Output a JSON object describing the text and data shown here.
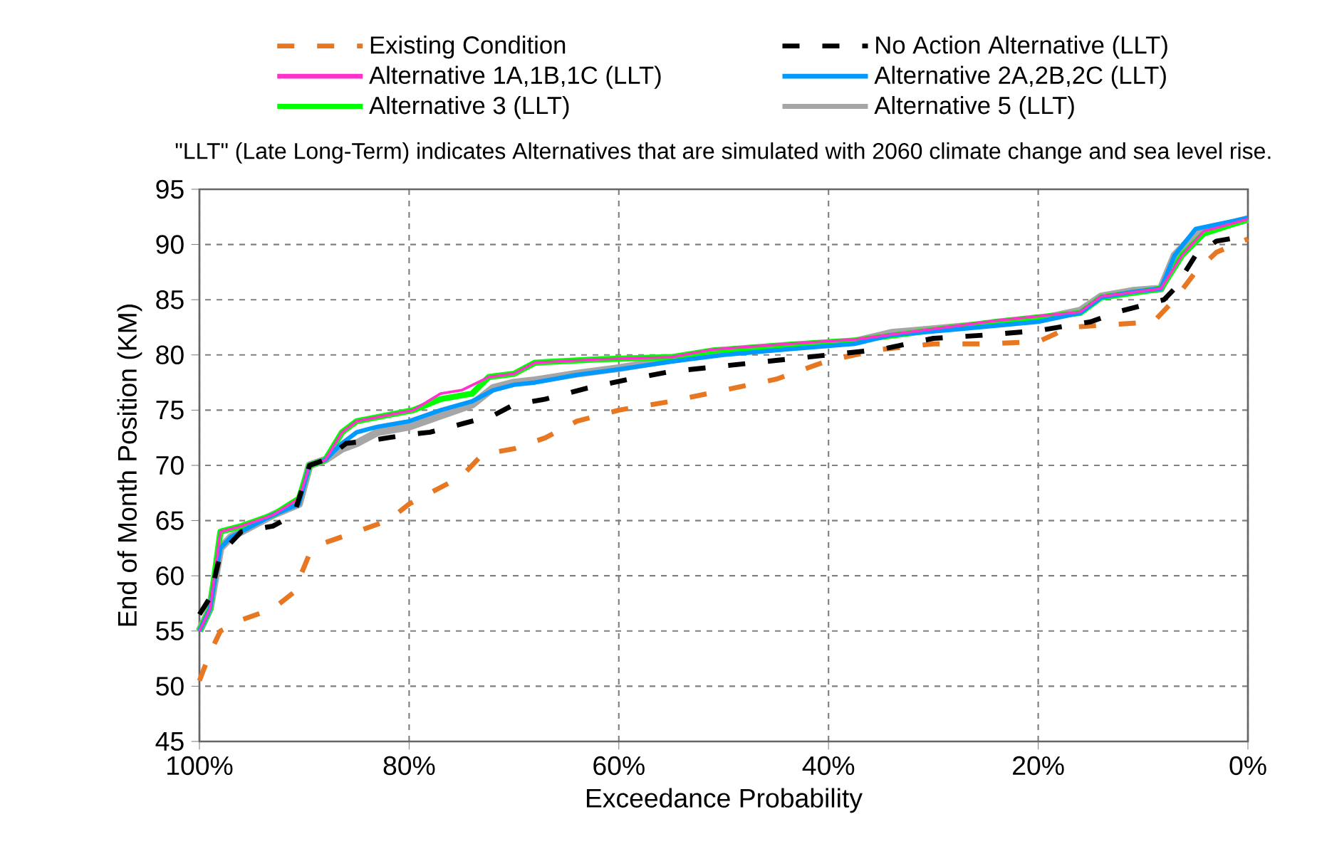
{
  "chart_data": {
    "type": "line",
    "xlabel": "Exceedance Probability",
    "ylabel": "End of Month Position (KM)",
    "annotations": [
      "\"LLT\" (Late Long-Term) indicates Alternatives that are simulated with 2060 climate change and sea level rise."
    ],
    "xlim": [
      100,
      0
    ],
    "ylim": [
      45,
      95
    ],
    "xticks": [
      {
        "value": 100,
        "label": "100%"
      },
      {
        "value": 80,
        "label": "80%"
      },
      {
        "value": 60,
        "label": "60%"
      },
      {
        "value": 40,
        "label": "40%"
      },
      {
        "value": 20,
        "label": "20%"
      },
      {
        "value": 0,
        "label": "0%"
      }
    ],
    "yticks": [
      45,
      50,
      55,
      60,
      65,
      70,
      75,
      80,
      85,
      90,
      95
    ],
    "grid": true,
    "legend": "top",
    "series": [
      {
        "name": "Existing Condition",
        "color": "#e87722",
        "line_style": "dashed",
        "x": [
          100,
          99,
          98,
          96,
          93,
          91,
          89.5,
          88,
          85,
          82,
          80,
          77,
          75,
          73,
          70,
          67,
          64,
          60,
          55,
          50,
          45,
          40,
          35,
          30,
          25,
          20,
          17,
          12,
          9,
          7,
          5,
          3,
          0
        ],
        "values": [
          50.5,
          53,
          55,
          56,
          57,
          58.5,
          62,
          63,
          64,
          65,
          66.5,
          68,
          69,
          71,
          71.5,
          72.5,
          74,
          75,
          75.8,
          76.8,
          77.8,
          79.5,
          80.5,
          81,
          81,
          81.2,
          82.5,
          82.8,
          83,
          85,
          87.5,
          89.3,
          90.5
        ]
      },
      {
        "name": "No Action Alternative (LLT)",
        "color": "#000000",
        "line_style": "dashed",
        "x": [
          100,
          99,
          98,
          97,
          96,
          93,
          91,
          89.5,
          88,
          86,
          84,
          82,
          80,
          78,
          76,
          74,
          72,
          70,
          67,
          63,
          59,
          55,
          50,
          45,
          40,
          35,
          30,
          25,
          20,
          15,
          12,
          10,
          8,
          7,
          5,
          3,
          0
        ],
        "values": [
          56.5,
          58,
          62,
          63,
          64,
          64.5,
          65.5,
          70,
          70.5,
          72,
          72.2,
          72.5,
          72.8,
          73,
          73.5,
          74,
          74.5,
          75.5,
          76,
          77,
          77.8,
          78.5,
          79,
          79.5,
          80,
          80.5,
          81.5,
          81.8,
          82.2,
          83,
          84,
          84.5,
          85,
          86,
          89,
          90.3,
          90.8
        ]
      },
      {
        "name": "Alternative 1A,1B,1C (LLT)",
        "color": "#ff33cc",
        "line_style": "solid",
        "x": [
          100,
          99,
          98,
          96,
          93,
          90.5,
          89.5,
          88,
          86.4,
          85,
          82.3,
          79.6,
          77,
          75,
          72.4,
          70,
          68,
          62,
          55,
          51,
          44,
          37.5,
          32,
          24,
          16,
          14,
          8.3,
          6.3,
          4.2,
          0
        ],
        "values": [
          55,
          57,
          64,
          64.5,
          65.5,
          67,
          70,
          70.5,
          73,
          74,
          74.5,
          75,
          76.5,
          76.8,
          78,
          78.3,
          79.3,
          79.6,
          79.8,
          80.5,
          81,
          81.4,
          82.1,
          83.1,
          83.9,
          85.3,
          86,
          89,
          91.2,
          92.3
        ]
      },
      {
        "name": "Alternative 2A,2B,2C (LLT)",
        "color": "#0099ff",
        "line_style": "solid",
        "x": [
          100,
          99,
          98,
          97,
          96,
          93,
          90.5,
          89.5,
          88,
          86.4,
          85,
          83,
          80,
          77,
          74,
          72,
          70,
          68,
          64,
          60,
          55,
          50,
          44,
          37.5,
          34,
          28,
          20,
          16,
          14,
          11,
          8.3,
          7,
          5,
          2,
          0
        ],
        "values": [
          55,
          57,
          62.5,
          63.5,
          64,
          65.5,
          66.5,
          70,
          70.5,
          72,
          73,
          73.5,
          74,
          75,
          75.8,
          76.8,
          77.3,
          77.5,
          78.2,
          78.7,
          79.4,
          80,
          80.5,
          81,
          81.8,
          82.3,
          83,
          83.8,
          85.2,
          85.7,
          86,
          89,
          91.4,
          92,
          92.4
        ]
      },
      {
        "name": "Alternative 3 (LLT)",
        "color": "#00ff00",
        "line_style": "solid",
        "x": [
          100,
          99,
          98,
          96,
          93,
          90.5,
          89.5,
          88,
          86.4,
          85,
          82.3,
          79.6,
          77,
          74,
          72.4,
          70,
          68,
          62,
          55,
          51,
          44,
          37.5,
          32,
          24,
          16,
          14,
          8.3,
          6.3,
          4.2,
          0
        ],
        "values": [
          55,
          57,
          64,
          64.5,
          65.5,
          67,
          70,
          70.5,
          73,
          74,
          74.5,
          75,
          76,
          76.5,
          78,
          78.3,
          79.3,
          79.6,
          79.8,
          80.4,
          80.9,
          81.3,
          82,
          83,
          83.8,
          85.2,
          86,
          89,
          91,
          92.3
        ]
      },
      {
        "name": "Alternative 5 (LLT)",
        "color": "#a6a6a6",
        "line_style": "solid",
        "x": [
          100,
          99,
          98,
          97,
          96,
          93,
          90.5,
          89.5,
          88,
          86.4,
          85,
          83,
          80,
          77,
          74,
          72,
          70,
          68,
          64,
          60,
          55,
          50,
          44,
          37.5,
          34,
          28,
          20,
          16,
          14,
          11,
          8.3,
          7,
          5,
          2,
          0
        ],
        "values": [
          55,
          57,
          62.5,
          63.5,
          64,
          65.5,
          66.5,
          70,
          70.5,
          71.5,
          72,
          73,
          73.5,
          74.5,
          75.5,
          77,
          77.5,
          77.7,
          78.3,
          78.8,
          79.6,
          80.2,
          80.7,
          81.2,
          82,
          82.5,
          83.2,
          84,
          85.3,
          85.8,
          86,
          89,
          91,
          91.8,
          92.3
        ]
      }
    ]
  }
}
